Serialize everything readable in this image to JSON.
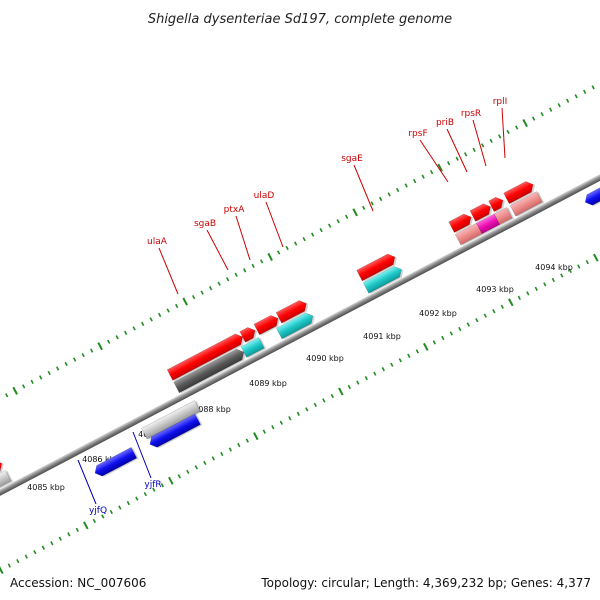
{
  "title": "Shigella dysenteriae Sd197, complete genome",
  "footer": {
    "accession": "Accession: NC_007606",
    "summary": "Topology: circular; Length: 4,369,232 bp; Genes: 4,377"
  },
  "scale_labels": [
    "4085 kbp",
    "4086 kbp",
    "4087 kbp",
    "4088 kbp",
    "4089 kbp",
    "4090 kbp",
    "4091 kbp",
    "4092 kbp",
    "4093 kbp",
    "4094 kbp"
  ],
  "forward_gene_labels": [
    "ulaA",
    "sgaB",
    "ptxA",
    "ulaD",
    "sgaE",
    "rpsF",
    "priB",
    "rpsR",
    "rplI"
  ],
  "reverse_gene_labels": [
    "yjfQ",
    "yjfR"
  ],
  "colors": {
    "forward_label": "#cc0000",
    "reverse_label": "#0000bb",
    "cds": "#ff0000",
    "reverse_gene": "#0000ee",
    "tick": "#228b22"
  }
}
